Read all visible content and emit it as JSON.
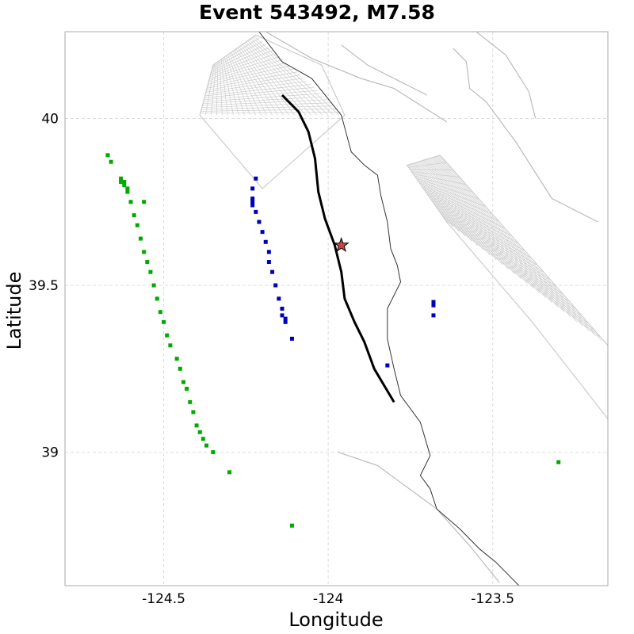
{
  "chart_data": {
    "type": "scatter",
    "title": "Event 543492, M7.58",
    "xlabel": "Longitude",
    "ylabel": "Latitude",
    "xlim": [
      -124.8,
      -123.15
    ],
    "ylim": [
      38.6,
      40.26
    ],
    "xticks": [
      {
        "value": -124.5,
        "label": "-124.5"
      },
      {
        "value": -124.0,
        "label": "-124"
      },
      {
        "value": -123.5,
        "label": "-123.5"
      }
    ],
    "yticks": [
      {
        "value": 40.0,
        "label": "40"
      },
      {
        "value": 39.5,
        "label": "39.5"
      },
      {
        "value": 39.0,
        "label": "39"
      }
    ],
    "grid": true,
    "colors": {
      "rupture": "#000000",
      "blue_series": "#0000bb",
      "green_series": "#00aa00",
      "coastline": "#333333",
      "faults": "#bbbbbb",
      "mesh": "#cccccc",
      "epicenter": "#cc4444"
    },
    "epicenter": {
      "lon": -123.96,
      "lat": 39.62,
      "marker": "star-icon"
    },
    "rupture_trace": [
      [
        -124.14,
        40.07
      ],
      [
        -124.09,
        40.02
      ],
      [
        -124.06,
        39.96
      ],
      [
        -124.04,
        39.88
      ],
      [
        -124.03,
        39.78
      ],
      [
        -124.01,
        39.7
      ],
      [
        -123.98,
        39.62
      ],
      [
        -123.96,
        39.54
      ],
      [
        -123.95,
        39.46
      ],
      [
        -123.92,
        39.39
      ],
      [
        -123.89,
        39.33
      ],
      [
        -123.86,
        39.25
      ],
      [
        -123.8,
        39.15
      ]
    ],
    "blue_series": [
      [
        -124.22,
        39.82
      ],
      [
        -124.23,
        39.79
      ],
      [
        -124.23,
        39.76
      ],
      [
        -124.23,
        39.75
      ],
      [
        -124.23,
        39.74
      ],
      [
        -124.22,
        39.72
      ],
      [
        -124.21,
        39.69
      ],
      [
        -124.2,
        39.66
      ],
      [
        -124.19,
        39.63
      ],
      [
        -124.18,
        39.6
      ],
      [
        -124.18,
        39.57
      ],
      [
        -124.17,
        39.54
      ],
      [
        -124.16,
        39.5
      ],
      [
        -124.15,
        39.46
      ],
      [
        -124.14,
        39.43
      ],
      [
        -124.14,
        39.41
      ],
      [
        -124.13,
        39.4
      ],
      [
        -124.13,
        39.39
      ],
      [
        -124.11,
        39.34
      ],
      [
        -123.82,
        39.26
      ],
      [
        -123.68,
        39.45
      ],
      [
        -123.68,
        39.44
      ],
      [
        -123.68,
        39.41
      ]
    ],
    "green_series": [
      [
        -124.67,
        39.89
      ],
      [
        -124.66,
        39.87
      ],
      [
        -124.63,
        39.82
      ],
      [
        -124.63,
        39.81
      ],
      [
        -124.62,
        39.81
      ],
      [
        -124.62,
        39.8
      ],
      [
        -124.61,
        39.79
      ],
      [
        -124.61,
        39.78
      ],
      [
        -124.56,
        39.75
      ],
      [
        -124.6,
        39.75
      ],
      [
        -124.59,
        39.71
      ],
      [
        -124.58,
        39.68
      ],
      [
        -124.57,
        39.64
      ],
      [
        -124.56,
        39.6
      ],
      [
        -124.55,
        39.57
      ],
      [
        -124.54,
        39.54
      ],
      [
        -124.53,
        39.5
      ],
      [
        -124.52,
        39.46
      ],
      [
        -124.51,
        39.42
      ],
      [
        -124.5,
        39.39
      ],
      [
        -124.49,
        39.35
      ],
      [
        -124.48,
        39.32
      ],
      [
        -124.46,
        39.28
      ],
      [
        -124.45,
        39.25
      ],
      [
        -124.44,
        39.21
      ],
      [
        -124.43,
        39.19
      ],
      [
        -124.42,
        39.15
      ],
      [
        -124.41,
        39.12
      ],
      [
        -124.4,
        39.08
      ],
      [
        -124.39,
        39.06
      ],
      [
        -124.38,
        39.04
      ],
      [
        -124.37,
        39.02
      ],
      [
        -124.35,
        39.0
      ],
      [
        -124.3,
        38.94
      ],
      [
        -124.11,
        38.78
      ],
      [
        -123.3,
        38.97
      ]
    ],
    "coastline": [
      [
        -124.21,
        40.26
      ],
      [
        -124.14,
        40.17
      ],
      [
        -124.05,
        40.12
      ],
      [
        -123.96,
        40.01
      ],
      [
        -123.93,
        39.9
      ],
      [
        -123.89,
        39.86
      ],
      [
        -123.85,
        39.83
      ],
      [
        -123.84,
        39.77
      ],
      [
        -123.82,
        39.69
      ],
      [
        -123.81,
        39.61
      ],
      [
        -123.79,
        39.56
      ],
      [
        -123.78,
        39.51
      ],
      [
        -123.82,
        39.43
      ],
      [
        -123.82,
        39.34
      ],
      [
        -123.8,
        39.25
      ],
      [
        -123.78,
        39.17
      ],
      [
        -123.72,
        39.09
      ],
      [
        -123.69,
        38.99
      ],
      [
        -123.72,
        38.93
      ],
      [
        -123.69,
        38.89
      ],
      [
        -123.67,
        38.83
      ],
      [
        -123.6,
        38.77
      ],
      [
        -123.54,
        38.71
      ],
      [
        -123.49,
        38.67
      ],
      [
        -123.42,
        38.6
      ]
    ],
    "faults": [
      [
        [
          -124.19,
          40.26
        ],
        [
          -124.05,
          40.18
        ],
        [
          -123.9,
          40.12
        ],
        [
          -123.8,
          40.09
        ],
        [
          -123.64,
          39.99
        ]
      ],
      [
        [
          -123.96,
          40.22
        ],
        [
          -123.88,
          40.16
        ],
        [
          -123.76,
          40.1
        ],
        [
          -123.7,
          40.07
        ]
      ],
      [
        [
          -123.55,
          40.26
        ],
        [
          -123.46,
          40.19
        ],
        [
          -123.39,
          40.08
        ],
        [
          -123.37,
          40.0
        ]
      ],
      [
        [
          -123.62,
          40.21
        ],
        [
          -123.58,
          40.17
        ],
        [
          -123.57,
          40.09
        ],
        [
          -123.52,
          40.05
        ],
        [
          -123.43,
          39.93
        ],
        [
          -123.32,
          39.76
        ],
        [
          -123.18,
          39.69
        ]
      ],
      [
        [
          -123.97,
          39.0
        ],
        [
          -123.85,
          38.96
        ],
        [
          -123.67,
          38.83
        ],
        [
          -123.57,
          38.72
        ],
        [
          -123.48,
          38.61
        ]
      ]
    ],
    "meshes": [
      {
        "corners": [
          [
            -124.35,
            40.16
          ],
          [
            -124.22,
            40.25
          ],
          [
            -124.02,
            40.16
          ],
          [
            -123.95,
            40.01
          ],
          [
            -124.2,
            39.79
          ],
          [
            -124.39,
            40.01
          ]
        ],
        "grid_a": [
          [
            -124.35,
            40.16
          ],
          [
            -123.95,
            40.01
          ],
          [
            -124.2,
            39.79
          ]
        ],
        "grid_b": [
          [
            -124.39,
            40.01
          ],
          [
            -124.2,
            39.79
          ],
          [
            -123.95,
            40.01
          ]
        ]
      },
      {
        "corners": [
          [
            -123.76,
            39.86
          ],
          [
            -123.66,
            39.89
          ],
          [
            -123.39,
            39.59
          ],
          [
            -123.15,
            39.32
          ],
          [
            -123.15,
            39.1
          ],
          [
            -123.38,
            39.39
          ],
          [
            -123.64,
            39.69
          ]
        ]
      }
    ]
  }
}
